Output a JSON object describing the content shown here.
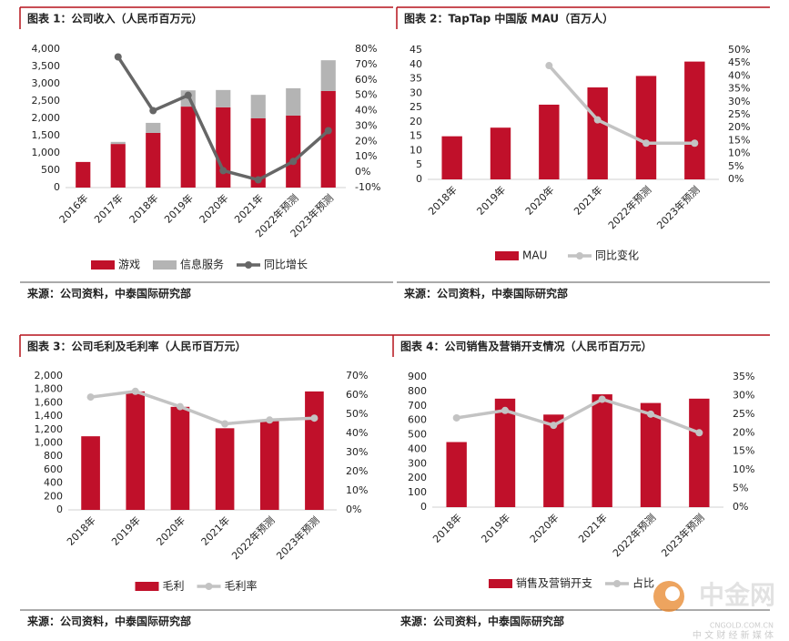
{
  "chart_data": [
    {
      "type": "bar",
      "title": "图表 1：公司收入（人民币百万元）",
      "stacked": true,
      "categories": [
        "2016年",
        "2017年",
        "2018年",
        "2019年",
        "2020年",
        "2021年",
        "2022年预测",
        "2023年预测"
      ],
      "series": [
        {
          "name": "游戏",
          "color": "#c0102a",
          "values": [
            740,
            1260,
            1580,
            2340,
            2320,
            2000,
            2080,
            2790
          ]
        },
        {
          "name": "信息服务",
          "color": "#b4b4b4",
          "values": [
            0,
            60,
            290,
            470,
            500,
            680,
            790,
            890
          ]
        },
        {
          "name": "同比增长",
          "type": "line",
          "axis": "y2",
          "color": "#666666",
          "values": [
            null,
            75,
            40,
            50,
            1,
            -5,
            7,
            27
          ]
        }
      ],
      "ylim": [
        0,
        4000
      ],
      "yticks": [
        0,
        500,
        {
          "value": 1000,
          "label": "1,000"
        },
        {
          "value": 1500,
          "label": "1,500"
        },
        {
          "value": 2000,
          "label": "2,000"
        },
        {
          "value": 2500,
          "label": "2,500"
        },
        {
          "value": 3000,
          "label": "3,000"
        },
        {
          "value": 3500,
          "label": "3,500"
        },
        {
          "value": 4000,
          "label": "4,000"
        }
      ],
      "y2lim": [
        -10,
        80
      ],
      "y2ticks": [
        {
          "value": -10,
          "label": "-10%"
        },
        {
          "value": 0,
          "label": "0%"
        },
        {
          "value": 10,
          "label": "10%"
        },
        {
          "value": 20,
          "label": "20%"
        },
        {
          "value": 30,
          "label": "30%"
        },
        {
          "value": 40,
          "label": "40%"
        },
        {
          "value": 50,
          "label": "50%"
        },
        {
          "value": 60,
          "label": "60%"
        },
        {
          "value": 70,
          "label": "70%"
        },
        {
          "value": 80,
          "label": "80%"
        }
      ],
      "grid": false,
      "source": "来源：公司资料，中泰国际研究部"
    },
    {
      "type": "bar",
      "title": "图表 2：TapTap 中国版 MAU（百万人）",
      "categories": [
        "2018年",
        "2019年",
        "2020年",
        "2021年",
        "2022年预测",
        "2023年预测"
      ],
      "series": [
        {
          "name": "MAU",
          "color": "#c0102a",
          "values": [
            15,
            18,
            26,
            32,
            36,
            41
          ]
        },
        {
          "name": "同比变化",
          "type": "line",
          "axis": "y2",
          "color": "#c3c3c3",
          "values": [
            null,
            null,
            44,
            23,
            14,
            14
          ]
        }
      ],
      "ylim": [
        0,
        45
      ],
      "yticks": [
        0,
        5,
        10,
        15,
        20,
        25,
        30,
        35,
        40,
        45
      ],
      "y2lim": [
        0,
        50
      ],
      "y2ticks": [
        {
          "value": 0,
          "label": "0%"
        },
        {
          "value": 5,
          "label": "5%"
        },
        {
          "value": 10,
          "label": "10%"
        },
        {
          "value": 15,
          "label": "15%"
        },
        {
          "value": 20,
          "label": "20%"
        },
        {
          "value": 25,
          "label": "25%"
        },
        {
          "value": 30,
          "label": "30%"
        },
        {
          "value": 35,
          "label": "35%"
        },
        {
          "value": 40,
          "label": "40%"
        },
        {
          "value": 45,
          "label": "45%"
        },
        {
          "value": 50,
          "label": "50%"
        }
      ],
      "grid": false,
      "source": "来源：公司资料，中泰国际研究部"
    },
    {
      "type": "bar",
      "title": "图表 3：公司毛利及毛利率（人民币百万元）",
      "categories": [
        "2018年",
        "2019年",
        "2020年",
        "2021年",
        "2022年预测",
        "2023年预测"
      ],
      "series": [
        {
          "name": "毛利",
          "color": "#c0102a",
          "values": [
            1100,
            1770,
            1540,
            1220,
            1350,
            1770
          ]
        },
        {
          "name": "毛利率",
          "type": "line",
          "axis": "y2",
          "color": "#c3c3c3",
          "values": [
            59,
            62,
            54,
            45,
            47,
            48
          ]
        }
      ],
      "ylim": [
        0,
        2000
      ],
      "yticks": [
        0,
        200,
        400,
        600,
        800,
        {
          "value": 1000,
          "label": "1,000"
        },
        {
          "value": 1200,
          "label": "1,200"
        },
        {
          "value": 1400,
          "label": "1,400"
        },
        {
          "value": 1600,
          "label": "1,600"
        },
        {
          "value": 1800,
          "label": "1,800"
        },
        {
          "value": 2000,
          "label": "2,000"
        }
      ],
      "y2lim": [
        0,
        70
      ],
      "y2ticks": [
        {
          "value": 0,
          "label": "0%"
        },
        {
          "value": 10,
          "label": "10%"
        },
        {
          "value": 20,
          "label": "20%"
        },
        {
          "value": 30,
          "label": "30%"
        },
        {
          "value": 40,
          "label": "40%"
        },
        {
          "value": 50,
          "label": "50%"
        },
        {
          "value": 60,
          "label": "60%"
        },
        {
          "value": 70,
          "label": "70%"
        }
      ],
      "grid": false,
      "source": "来源：公司资料，中泰国际研究部"
    },
    {
      "type": "bar",
      "title": "图表 4：公司销售及营销开支情况（人民币百万元）",
      "categories": [
        "2018年",
        "2019年",
        "2020年",
        "2021年",
        "2022年预测",
        "2023年预测"
      ],
      "series": [
        {
          "name": "销售及营销开支",
          "color": "#c0102a",
          "values": [
            450,
            750,
            640,
            780,
            720,
            750
          ]
        },
        {
          "name": "占比",
          "type": "line",
          "axis": "y2",
          "color": "#c3c3c3",
          "values": [
            24,
            26,
            22,
            29,
            25,
            20
          ]
        }
      ],
      "ylim": [
        0,
        900
      ],
      "yticks": [
        0,
        100,
        200,
        300,
        400,
        500,
        600,
        700,
        800,
        900
      ],
      "y2lim": [
        0,
        35
      ],
      "y2ticks": [
        {
          "value": 0,
          "label": "0%"
        },
        {
          "value": 5,
          "label": "5%"
        },
        {
          "value": 10,
          "label": "10%"
        },
        {
          "value": 15,
          "label": "15%"
        },
        {
          "value": 20,
          "label": "20%"
        },
        {
          "value": 25,
          "label": "25%"
        },
        {
          "value": 30,
          "label": "30%"
        },
        {
          "value": 35,
          "label": "35%"
        }
      ],
      "grid": false,
      "source": "来源：公司资料，中泰国际研究部"
    }
  ],
  "watermark": {
    "name": "中金网",
    "url": "CNGOLD.COM.CN",
    "tagline": "中 文 财 经 新 媒 体"
  }
}
